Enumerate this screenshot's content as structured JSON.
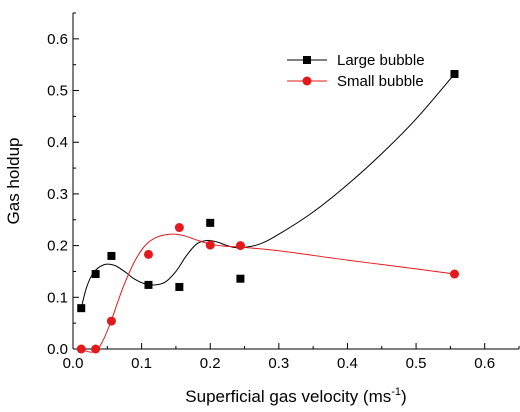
{
  "chart_data": {
    "type": "scatter",
    "xlabel": "Superficial gas velocity (ms",
    "xlabel_sup": "-1",
    "xlabel_end": ")",
    "ylabel": "Gas holdup",
    "xlim": [
      0.0,
      0.65
    ],
    "ylim": [
      0.0,
      0.65
    ],
    "x_ticks": [
      "0.0",
      "0.1",
      "0.2",
      "0.3",
      "0.4",
      "0.5",
      "0.6"
    ],
    "y_ticks": [
      "0.0",
      "0.1",
      "0.2",
      "0.3",
      "0.4",
      "0.5",
      "0.6"
    ],
    "legend_position": "top-right",
    "grid": false,
    "series": [
      {
        "name": "Large bubble",
        "color": "#000000",
        "marker": "square",
        "x": [
          0.012,
          0.033,
          0.056,
          0.11,
          0.155,
          0.2,
          0.244,
          0.556
        ],
        "y": [
          0.079,
          0.145,
          0.18,
          0.124,
          0.12,
          0.244,
          0.136,
          0.532
        ],
        "fit_curve": {
          "x": [
            0.012,
            0.02,
            0.03,
            0.045,
            0.06,
            0.075,
            0.09,
            0.105,
            0.12,
            0.135,
            0.15,
            0.165,
            0.18,
            0.195,
            0.21,
            0.225,
            0.24,
            0.27,
            0.3,
            0.35,
            0.4,
            0.45,
            0.5,
            0.556
          ],
          "y": [
            0.079,
            0.12,
            0.148,
            0.163,
            0.162,
            0.15,
            0.135,
            0.126,
            0.124,
            0.13,
            0.15,
            0.18,
            0.203,
            0.21,
            0.207,
            0.2,
            0.196,
            0.202,
            0.222,
            0.265,
            0.318,
            0.378,
            0.445,
            0.532
          ]
        }
      },
      {
        "name": "Small bubble",
        "color": "#e4191c",
        "marker": "circle",
        "x": [
          0.012,
          0.033,
          0.056,
          0.11,
          0.155,
          0.2,
          0.244,
          0.556
        ],
        "y": [
          0.0,
          0.0,
          0.054,
          0.183,
          0.235,
          0.201,
          0.2,
          0.145
        ],
        "fit_curve": {
          "x": [
            0.012,
            0.025,
            0.035,
            0.045,
            0.055,
            0.065,
            0.075,
            0.09,
            0.105,
            0.12,
            0.135,
            0.15,
            0.165,
            0.18,
            0.2,
            0.22,
            0.244,
            0.3,
            0.4,
            0.5,
            0.556
          ],
          "y": [
            0.0,
            -0.006,
            -0.002,
            0.02,
            0.052,
            0.09,
            0.126,
            0.17,
            0.2,
            0.215,
            0.221,
            0.222,
            0.218,
            0.211,
            0.203,
            0.199,
            0.197,
            0.19,
            0.172,
            0.155,
            0.145
          ]
        }
      }
    ]
  }
}
